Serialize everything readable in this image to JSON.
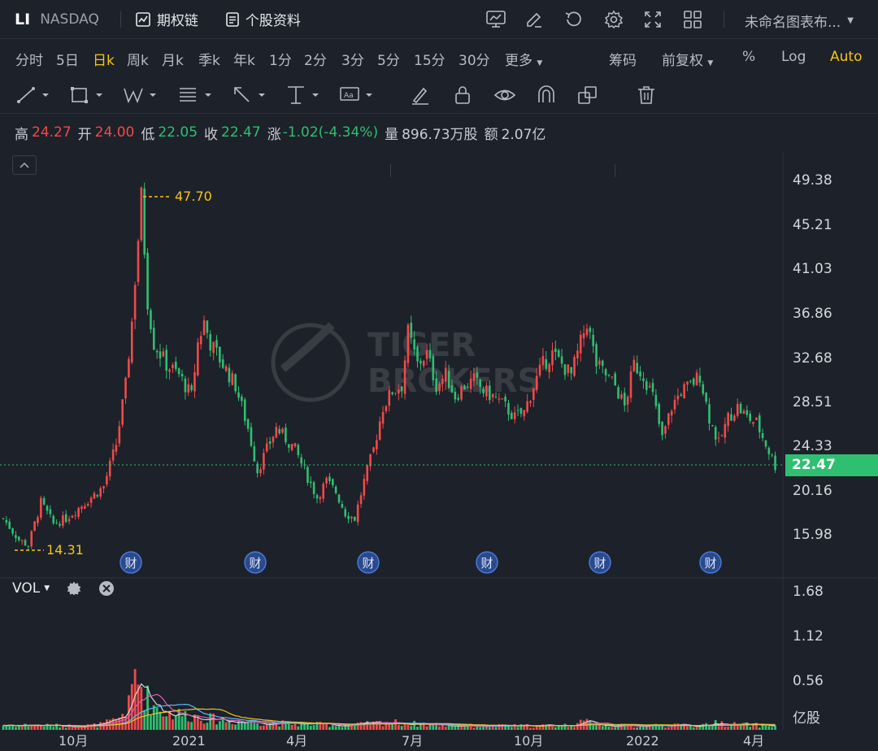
{
  "header": {
    "symbol": "LI",
    "exchange": "NASDAQ",
    "options_chain_label": "期权链",
    "stock_info_label": "个股资料",
    "layout_name": "未命名图表布..."
  },
  "periods": {
    "items": [
      "分时",
      "5日",
      "日k",
      "周k",
      "月k",
      "季k",
      "年k",
      "1分",
      "2分",
      "3分",
      "5分",
      "15分",
      "30分",
      "更多"
    ],
    "active": "日k",
    "chips_label": "筹码",
    "adjust_label": "前复权",
    "percent_label": "%",
    "log_label": "Log",
    "auto_label": "Auto"
  },
  "quote": {
    "high_label": "高",
    "high": "24.27",
    "open_label": "开",
    "open": "24.00",
    "low_label": "低",
    "low": "22.05",
    "close_label": "收",
    "close": "22.47",
    "change_label": "涨",
    "change": "-1.02(-4.34%)",
    "volume_label": "量",
    "volume": "896.73万股",
    "amount_label": "额",
    "amount": "2.07亿"
  },
  "watermark": [
    "TIGER",
    "BROKERS"
  ],
  "volume_panel": {
    "label": "VOL"
  },
  "earnings_marker": "财",
  "chart_data": {
    "type": "candlestick",
    "price_axis_ticks": [
      "49.38",
      "45.21",
      "41.03",
      "36.86",
      "32.68",
      "28.51",
      "24.33",
      "20.16",
      "15.98"
    ],
    "volume_axis_ticks": [
      "1.68",
      "1.12",
      "0.56"
    ],
    "volume_unit": "亿股",
    "x_ticks": [
      "10月",
      "2021",
      "4月",
      "7月",
      "10月",
      "2022",
      "4月"
    ],
    "last_price": "22.47",
    "period_high_label": "47.70",
    "period_low_label": "14.31",
    "anchors": [
      [
        0,
        17.5
      ],
      [
        5,
        15.5
      ],
      [
        8,
        15.0
      ],
      [
        12,
        19
      ],
      [
        16,
        17
      ],
      [
        20,
        17.5
      ],
      [
        24,
        18.5
      ],
      [
        28,
        19.5
      ],
      [
        32,
        20.5
      ],
      [
        36,
        24.5
      ],
      [
        39,
        30
      ],
      [
        41,
        36
      ],
      [
        42,
        40
      ],
      [
        44,
        47.7
      ],
      [
        46,
        38
      ],
      [
        48,
        34
      ],
      [
        52,
        32
      ],
      [
        56,
        31
      ],
      [
        60,
        29
      ],
      [
        62,
        34
      ],
      [
        64,
        36
      ],
      [
        66,
        34
      ],
      [
        70,
        32
      ],
      [
        74,
        30
      ],
      [
        78,
        26
      ],
      [
        81,
        22
      ],
      [
        84,
        24
      ],
      [
        87,
        26
      ],
      [
        90,
        25
      ],
      [
        93,
        24
      ],
      [
        96,
        22
      ],
      [
        100,
        19.5
      ],
      [
        103,
        21
      ],
      [
        106,
        20
      ],
      [
        109,
        18
      ],
      [
        112,
        17.5
      ],
      [
        115,
        21
      ],
      [
        118,
        24
      ],
      [
        121,
        28
      ],
      [
        124,
        29.5
      ],
      [
        127,
        30
      ],
      [
        129,
        35
      ],
      [
        132,
        32
      ],
      [
        135,
        33
      ],
      [
        138,
        30
      ],
      [
        141,
        31
      ],
      [
        144,
        29
      ],
      [
        147,
        30
      ],
      [
        150,
        30.5
      ],
      [
        153,
        29.5
      ],
      [
        156,
        29
      ],
      [
        160,
        28
      ],
      [
        163,
        27
      ],
      [
        166,
        27.5
      ],
      [
        169,
        30
      ],
      [
        172,
        32
      ],
      [
        175,
        33
      ],
      [
        178,
        32
      ],
      [
        181,
        31
      ],
      [
        184,
        34
      ],
      [
        186,
        36
      ],
      [
        189,
        32
      ],
      [
        192,
        31
      ],
      [
        195,
        30
      ],
      [
        198,
        28
      ],
      [
        201,
        32
      ],
      [
        204,
        31
      ],
      [
        207,
        29
      ],
      [
        210,
        25
      ],
      [
        213,
        28
      ],
      [
        216,
        29.5
      ],
      [
        219,
        30
      ],
      [
        222,
        31
      ],
      [
        225,
        27
      ],
      [
        228,
        24.5
      ],
      [
        231,
        27
      ],
      [
        234,
        28
      ],
      [
        237,
        27
      ],
      [
        240,
        26.5
      ],
      [
        243,
        24.5
      ],
      [
        246,
        22.5
      ]
    ],
    "volume_anchors": [
      [
        0,
        0.06
      ],
      [
        10,
        0.06
      ],
      [
        20,
        0.05
      ],
      [
        30,
        0.06
      ],
      [
        36,
        0.12
      ],
      [
        40,
        0.3
      ],
      [
        42,
        0.7
      ],
      [
        44,
        0.55
      ],
      [
        46,
        0.4
      ],
      [
        48,
        0.3
      ],
      [
        52,
        0.22
      ],
      [
        60,
        0.18
      ],
      [
        70,
        0.12
      ],
      [
        80,
        0.1
      ],
      [
        90,
        0.08
      ],
      [
        100,
        0.07
      ],
      [
        110,
        0.06
      ],
      [
        118,
        0.08
      ],
      [
        122,
        0.1
      ],
      [
        130,
        0.08
      ],
      [
        140,
        0.06
      ],
      [
        150,
        0.05
      ],
      [
        160,
        0.05
      ],
      [
        170,
        0.05
      ],
      [
        180,
        0.06
      ],
      [
        186,
        0.1
      ],
      [
        192,
        0.06
      ],
      [
        200,
        0.05
      ],
      [
        210,
        0.06
      ],
      [
        220,
        0.05
      ],
      [
        228,
        0.09
      ],
      [
        232,
        0.07
      ],
      [
        240,
        0.06
      ],
      [
        246,
        0.05
      ]
    ]
  }
}
